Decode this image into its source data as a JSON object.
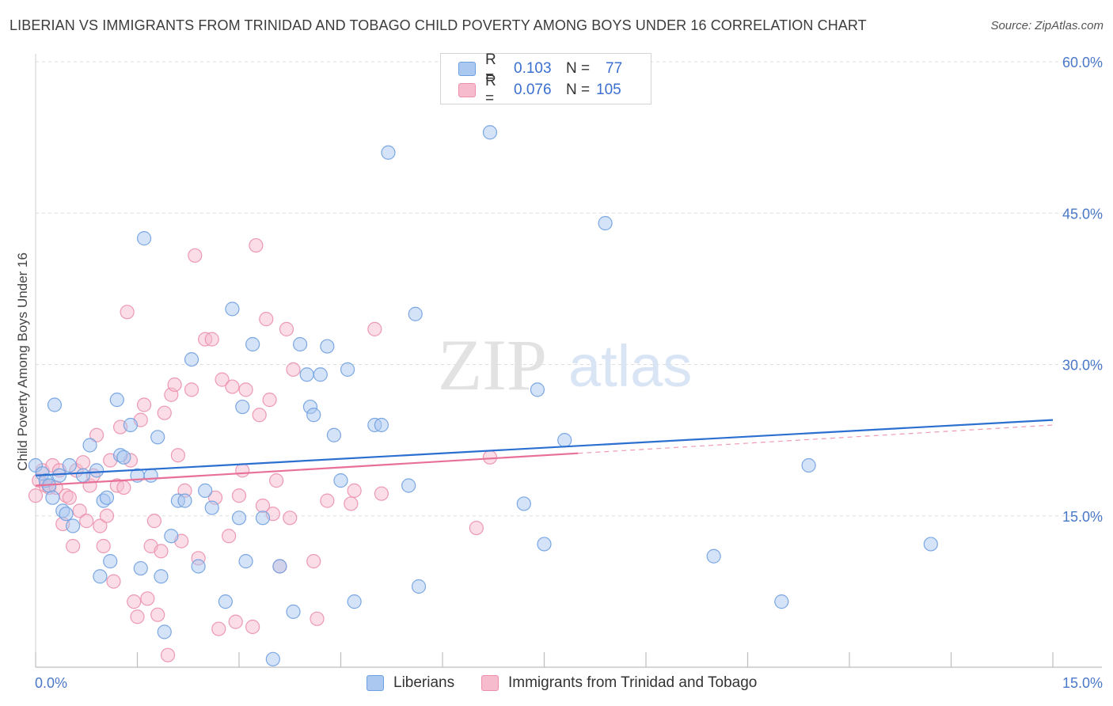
{
  "header": {
    "title": "LIBERIAN VS IMMIGRANTS FROM TRINIDAD AND TOBAGO CHILD POVERTY AMONG BOYS UNDER 16 CORRELATION CHART",
    "source": "Source: ZipAtlas.com"
  },
  "watermark": {
    "zip": "ZIP",
    "atlas": "atlas"
  },
  "legend": {
    "rows": [
      {
        "r_label": "R =",
        "r_value": "0.103",
        "n_label": "N =",
        "n_value": "77"
      },
      {
        "r_label": "R =",
        "r_value": "0.076",
        "n_label": "N =",
        "n_value": "105"
      }
    ]
  },
  "bottom_legend": {
    "series1": "Liberians",
    "series2": "Immigrants from Trinidad and Tobago"
  },
  "colors": {
    "blue_fill": "#aac8f0",
    "blue_stroke": "#6e9fe0",
    "blue_line": "#2b6fd0",
    "pink_fill": "#f6bccd",
    "pink_stroke": "#eb8fab",
    "pink_line": "#e87097",
    "tick_text": "#4a78c8",
    "grid": "#dcdcdc"
  },
  "chart_data": {
    "type": "scatter",
    "title": "LIBERIAN VS IMMIGRANTS FROM TRINIDAD AND TOBAGO CHILD POVERTY AMONG BOYS UNDER 16 CORRELATION CHART",
    "xlabel": "",
    "ylabel": "Child Poverty Among Boys Under 16",
    "xlim": [
      0,
      15
    ],
    "ylim": [
      0,
      60
    ],
    "x_tick_labels": [
      "0.0%",
      "15.0%"
    ],
    "y_ticks": [
      15,
      30,
      45,
      60
    ],
    "y_tick_labels": [
      "15.0%",
      "30.0%",
      "45.0%",
      "60.0%"
    ],
    "grid": true,
    "legend_position": "top-center",
    "series": [
      {
        "name": "Liberians",
        "r": 0.103,
        "n": 77,
        "trend": {
          "x": [
            0,
            15
          ],
          "y": [
            19.0,
            24.5
          ],
          "dashed_from": null
        },
        "points": [
          [
            0.0,
            20.0
          ],
          [
            0.1,
            19.2
          ],
          [
            0.15,
            18.5
          ],
          [
            0.2,
            18.0
          ],
          [
            0.25,
            16.8
          ],
          [
            0.28,
            26.0
          ],
          [
            0.35,
            19.0
          ],
          [
            0.4,
            15.5
          ],
          [
            0.45,
            15.2
          ],
          [
            0.5,
            20.0
          ],
          [
            0.55,
            14.0
          ],
          [
            0.7,
            19.0
          ],
          [
            0.8,
            22.0
          ],
          [
            0.9,
            19.5
          ],
          [
            0.95,
            9.0
          ],
          [
            1.0,
            16.5
          ],
          [
            1.05,
            16.8
          ],
          [
            1.1,
            10.5
          ],
          [
            1.2,
            26.5
          ],
          [
            1.25,
            21.0
          ],
          [
            1.3,
            20.8
          ],
          [
            1.4,
            24.0
          ],
          [
            1.5,
            19.0
          ],
          [
            1.55,
            9.8
          ],
          [
            1.6,
            42.5
          ],
          [
            1.7,
            19.0
          ],
          [
            1.8,
            22.8
          ],
          [
            1.85,
            9.0
          ],
          [
            1.9,
            3.5
          ],
          [
            2.0,
            13.0
          ],
          [
            2.1,
            16.5
          ],
          [
            2.2,
            16.5
          ],
          [
            2.3,
            30.5
          ],
          [
            2.4,
            10.0
          ],
          [
            2.5,
            17.5
          ],
          [
            2.6,
            15.8
          ],
          [
            2.8,
            6.5
          ],
          [
            2.9,
            35.5
          ],
          [
            3.0,
            14.8
          ],
          [
            3.05,
            25.8
          ],
          [
            3.1,
            10.5
          ],
          [
            3.2,
            32.0
          ],
          [
            3.35,
            14.8
          ],
          [
            3.5,
            0.8
          ],
          [
            3.6,
            10.0
          ],
          [
            3.8,
            5.5
          ],
          [
            3.9,
            32.0
          ],
          [
            4.0,
            29.0
          ],
          [
            4.05,
            25.8
          ],
          [
            4.1,
            25.0
          ],
          [
            4.2,
            29.0
          ],
          [
            4.3,
            31.8
          ],
          [
            4.4,
            23.0
          ],
          [
            4.5,
            18.5
          ],
          [
            4.6,
            29.5
          ],
          [
            4.7,
            6.5
          ],
          [
            5.0,
            24.0
          ],
          [
            5.1,
            24.0
          ],
          [
            5.2,
            51.0
          ],
          [
            5.5,
            18.0
          ],
          [
            5.6,
            35.0
          ],
          [
            5.65,
            8.0
          ],
          [
            6.7,
            53.0
          ],
          [
            7.2,
            16.2
          ],
          [
            7.4,
            27.5
          ],
          [
            7.5,
            12.2
          ],
          [
            7.8,
            22.5
          ],
          [
            8.4,
            44.0
          ],
          [
            10.0,
            11.0
          ],
          [
            11.0,
            6.5
          ],
          [
            11.4,
            20.0
          ],
          [
            13.2,
            12.2
          ]
        ]
      },
      {
        "name": "Immigrants from Trinidad and Tobago",
        "r": 0.076,
        "n": 105,
        "trend": {
          "x": [
            0,
            15
          ],
          "y": [
            18.0,
            24.0
          ],
          "solid_until": 8.0
        },
        "points": [
          [
            0.0,
            17.0
          ],
          [
            0.05,
            18.5
          ],
          [
            0.1,
            19.5
          ],
          [
            0.15,
            18.0
          ],
          [
            0.2,
            17.8
          ],
          [
            0.25,
            20.0
          ],
          [
            0.3,
            17.8
          ],
          [
            0.35,
            19.5
          ],
          [
            0.4,
            14.2
          ],
          [
            0.45,
            17.0
          ],
          [
            0.5,
            16.8
          ],
          [
            0.55,
            12.0
          ],
          [
            0.6,
            19.5
          ],
          [
            0.65,
            15.5
          ],
          [
            0.7,
            20.3
          ],
          [
            0.75,
            14.5
          ],
          [
            0.8,
            18.0
          ],
          [
            0.85,
            19.0
          ],
          [
            0.9,
            23.0
          ],
          [
            0.95,
            14.0
          ],
          [
            1.0,
            12.0
          ],
          [
            1.05,
            15.0
          ],
          [
            1.1,
            20.5
          ],
          [
            1.15,
            8.5
          ],
          [
            1.2,
            18.0
          ],
          [
            1.25,
            23.8
          ],
          [
            1.3,
            17.8
          ],
          [
            1.35,
            35.2
          ],
          [
            1.4,
            20.5
          ],
          [
            1.45,
            6.5
          ],
          [
            1.5,
            5.0
          ],
          [
            1.55,
            24.5
          ],
          [
            1.6,
            26.0
          ],
          [
            1.65,
            6.8
          ],
          [
            1.7,
            12.0
          ],
          [
            1.75,
            14.5
          ],
          [
            1.8,
            5.2
          ],
          [
            1.85,
            11.5
          ],
          [
            1.9,
            25.2
          ],
          [
            1.95,
            1.2
          ],
          [
            2.0,
            27.0
          ],
          [
            2.05,
            28.0
          ],
          [
            2.1,
            21.0
          ],
          [
            2.15,
            12.5
          ],
          [
            2.2,
            17.5
          ],
          [
            2.3,
            27.5
          ],
          [
            2.35,
            40.8
          ],
          [
            2.4,
            10.8
          ],
          [
            2.5,
            32.5
          ],
          [
            2.6,
            32.5
          ],
          [
            2.65,
            16.8
          ],
          [
            2.7,
            3.8
          ],
          [
            2.75,
            28.5
          ],
          [
            2.85,
            13.0
          ],
          [
            2.9,
            27.8
          ],
          [
            2.95,
            4.5
          ],
          [
            3.0,
            17.0
          ],
          [
            3.05,
            19.5
          ],
          [
            3.1,
            27.5
          ],
          [
            3.2,
            4.0
          ],
          [
            3.25,
            41.8
          ],
          [
            3.3,
            25.0
          ],
          [
            3.35,
            16.0
          ],
          [
            3.4,
            34.5
          ],
          [
            3.45,
            26.5
          ],
          [
            3.5,
            15.2
          ],
          [
            3.55,
            18.5
          ],
          [
            3.6,
            10.0
          ],
          [
            3.7,
            33.5
          ],
          [
            3.75,
            14.8
          ],
          [
            3.8,
            29.5
          ],
          [
            4.1,
            10.5
          ],
          [
            4.15,
            4.8
          ],
          [
            4.3,
            16.5
          ],
          [
            4.65,
            16.2
          ],
          [
            4.7,
            17.5
          ],
          [
            5.0,
            33.5
          ],
          [
            5.1,
            17.2
          ],
          [
            6.5,
            13.8
          ],
          [
            6.7,
            20.8
          ]
        ]
      }
    ]
  }
}
